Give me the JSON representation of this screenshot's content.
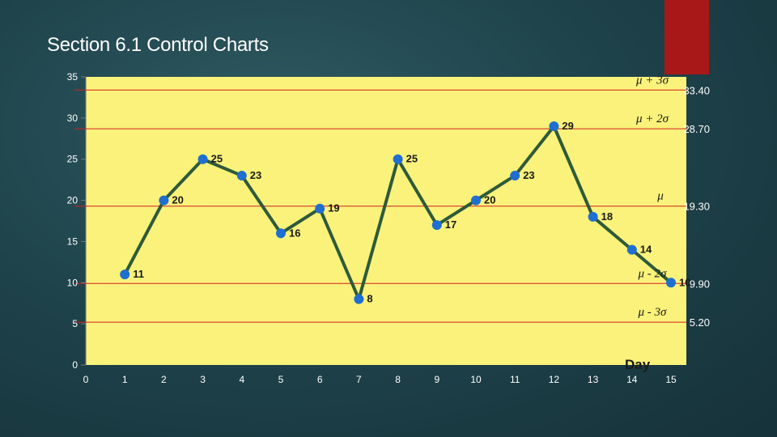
{
  "slide": {
    "title": "Section 6.1 Control Charts"
  },
  "chart_data": {
    "type": "line",
    "x": [
      1,
      2,
      3,
      4,
      5,
      6,
      7,
      8,
      9,
      10,
      11,
      12,
      13,
      14,
      15
    ],
    "values": [
      11,
      20,
      25,
      23,
      16,
      19,
      8,
      25,
      17,
      20,
      23,
      29,
      18,
      14,
      10
    ],
    "value_labels": [
      "11",
      "20",
      "25",
      "23",
      "16",
      "19",
      "8",
      "25",
      "17",
      "20",
      "23",
      "29",
      "18",
      "14",
      "10"
    ],
    "xlim": [
      0,
      15
    ],
    "ylim": [
      0,
      35
    ],
    "x_ticks": [
      "0",
      "1",
      "2",
      "3",
      "4",
      "5",
      "6",
      "7",
      "8",
      "9",
      "10",
      "11",
      "12",
      "13",
      "14",
      "15"
    ],
    "y_ticks": [
      "0",
      "5",
      "10",
      "15",
      "20",
      "25",
      "30",
      "35"
    ],
    "xlabel": "Day",
    "ylabel": "",
    "grid": false,
    "control_limits": [
      {
        "name": "μ + 3σ",
        "value": 33.4,
        "value_label": "33.40"
      },
      {
        "name": "μ + 2σ",
        "value": 28.7,
        "value_label": "28.70"
      },
      {
        "name": "μ",
        "value": 19.3,
        "value_label": "19.30"
      },
      {
        "name": "μ - 2σ",
        "value": 9.9,
        "value_label": "9.90"
      },
      {
        "name": "μ - 3σ",
        "value": 5.2,
        "value_label": "5.20"
      }
    ],
    "colors": {
      "plot_background": "#faf27a",
      "line": "#2e5a3a",
      "marker": "#1f6fd0",
      "limit_line": "#d22020",
      "accent_block": "#a81818"
    }
  }
}
